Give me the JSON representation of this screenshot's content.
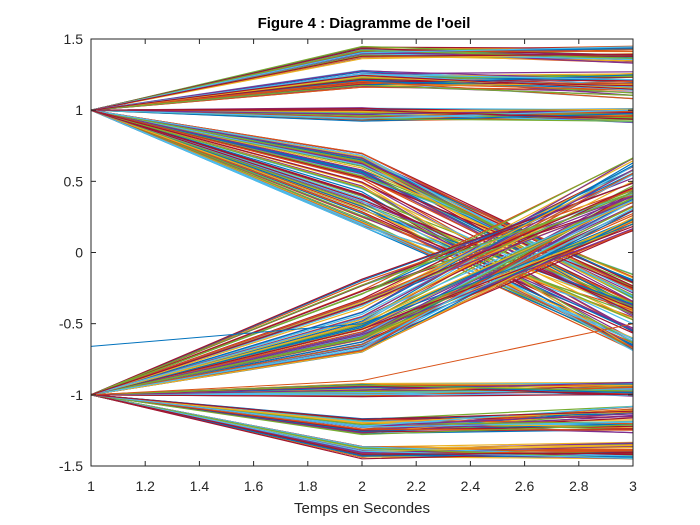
{
  "chart_data": {
    "type": "line",
    "title": "Figure 4 : Diagramme de l'oeil",
    "xlabel": "Temps en Secondes",
    "ylabel": "",
    "xlim": [
      1,
      3
    ],
    "ylim": [
      -1.5,
      1.5
    ],
    "xticks": [
      "1",
      "1.2",
      "1.4",
      "1.6",
      "1.8",
      "2",
      "2.2",
      "2.4",
      "2.6",
      "2.8",
      "3"
    ],
    "yticks": [
      "-1.5",
      "-1",
      "-0.5",
      "0",
      "0.5",
      "1",
      "1.5"
    ],
    "grid": false,
    "x": [
      1,
      2,
      3
    ],
    "trace_groups": [
      {
        "start": 1,
        "mid": [
          1.36,
          1.45
        ],
        "end": [
          1.33,
          1.45
        ]
      },
      {
        "start": 1,
        "mid": [
          1.16,
          1.28
        ],
        "end": [
          1.08,
          1.27
        ]
      },
      {
        "start": 1,
        "mid": [
          0.92,
          1.02
        ],
        "end": [
          0.91,
          1.01
        ]
      },
      {
        "start": 1,
        "mid": [
          0.52,
          0.7
        ],
        "end": [
          -0.45,
          -0.15
        ]
      },
      {
        "start": 1,
        "mid": [
          0.18,
          0.52
        ],
        "end": [
          -0.7,
          -0.35
        ]
      },
      {
        "start": -1,
        "mid": [
          -1.45,
          -1.36
        ],
        "end": [
          -1.45,
          -1.33
        ]
      },
      {
        "start": -1,
        "mid": [
          -1.28,
          -1.16
        ],
        "end": [
          -1.27,
          -1.08
        ]
      },
      {
        "start": -1,
        "mid": [
          -1.02,
          -0.92
        ],
        "end": [
          -1.01,
          -0.91
        ]
      },
      {
        "start": -1,
        "mid": [
          -0.7,
          -0.52
        ],
        "end": [
          0.15,
          0.45
        ]
      },
      {
        "start": -1,
        "mid": [
          -0.52,
          -0.18
        ],
        "end": [
          0.35,
          0.7
        ]
      }
    ],
    "special_traces": [
      {
        "y": [
          -0.66,
          -0.5,
          0.2
        ],
        "color": "#0072BD"
      },
      {
        "y": [
          -1,
          -0.9,
          -0.5
        ],
        "color": "#D95319"
      }
    ],
    "colors": [
      "#0072BD",
      "#D95319",
      "#EDB120",
      "#7E2F8E",
      "#77AC30",
      "#4DBEEE",
      "#A2142F"
    ]
  }
}
